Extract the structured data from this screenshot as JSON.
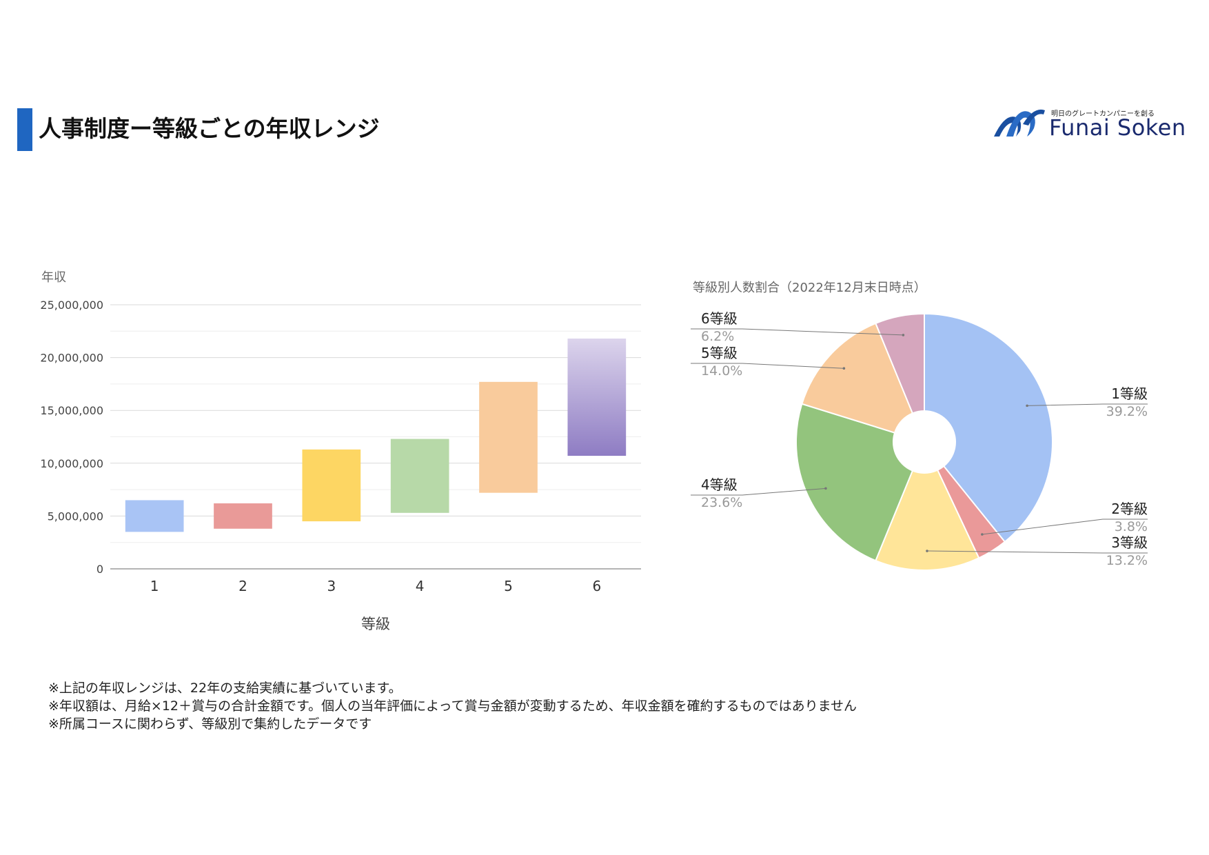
{
  "page": {
    "title": "人事制度ー等級ごとの年収レンジ"
  },
  "logo": {
    "tagline": "明日のグレートカンパニーを創る",
    "name": "Funai Soken"
  },
  "notes": [
    "※上記の年収レンジは、22年の支給実績に基づいています。",
    "※年収額は、月給×12＋賞与の合計金額です。個人の当年評価によって賞与金額が変動するため、年収金額を確約するものではありません",
    "※所属コースに関わらず、等級別で集約したデータです"
  ],
  "chart_data": [
    {
      "type": "bar",
      "subtype": "floating-range",
      "title": "",
      "xlabel": "等級",
      "ylabel": "年収",
      "ylim": [
        0,
        25000000
      ],
      "yticks": [
        0,
        5000000,
        10000000,
        15000000,
        20000000,
        25000000
      ],
      "ytick_labels": [
        "0",
        "5,000,000",
        "10,000,000",
        "15,000,000",
        "20,000,000",
        "25,000,000"
      ],
      "categories": [
        "1",
        "2",
        "3",
        "4",
        "5",
        "6"
      ],
      "ranges": [
        {
          "low": 3500000,
          "high": 6500000
        },
        {
          "low": 3800000,
          "high": 6200000
        },
        {
          "low": 4500000,
          "high": 11300000
        },
        {
          "low": 5300000,
          "high": 12300000
        },
        {
          "low": 7200000,
          "high": 17700000
        },
        {
          "low": 10700000,
          "high": 21800000
        }
      ],
      "colors": [
        "#a9c4f5",
        "#e99a98",
        "#fdd663",
        "#b7d9a8",
        "#f9cb9c",
        "#b4a7d6"
      ],
      "grid": true,
      "legend": "none"
    },
    {
      "type": "pie",
      "subtype": "donut",
      "title": "等級別人数割合（2022年12月末日時点）",
      "labels": [
        "1等級",
        "2等級",
        "3等級",
        "4等級",
        "5等級",
        "6等級"
      ],
      "values": [
        39.2,
        3.8,
        13.2,
        23.6,
        14.0,
        6.2
      ],
      "value_labels": [
        "39.2%",
        "3.8%",
        "13.2%",
        "23.6%",
        "14.0%",
        "6.2%"
      ],
      "colors": [
        "#a4c2f4",
        "#ea9999",
        "#ffe599",
        "#93c47d",
        "#f9cb9c",
        "#d5a6bd"
      ],
      "legend": "labels-outside"
    }
  ]
}
